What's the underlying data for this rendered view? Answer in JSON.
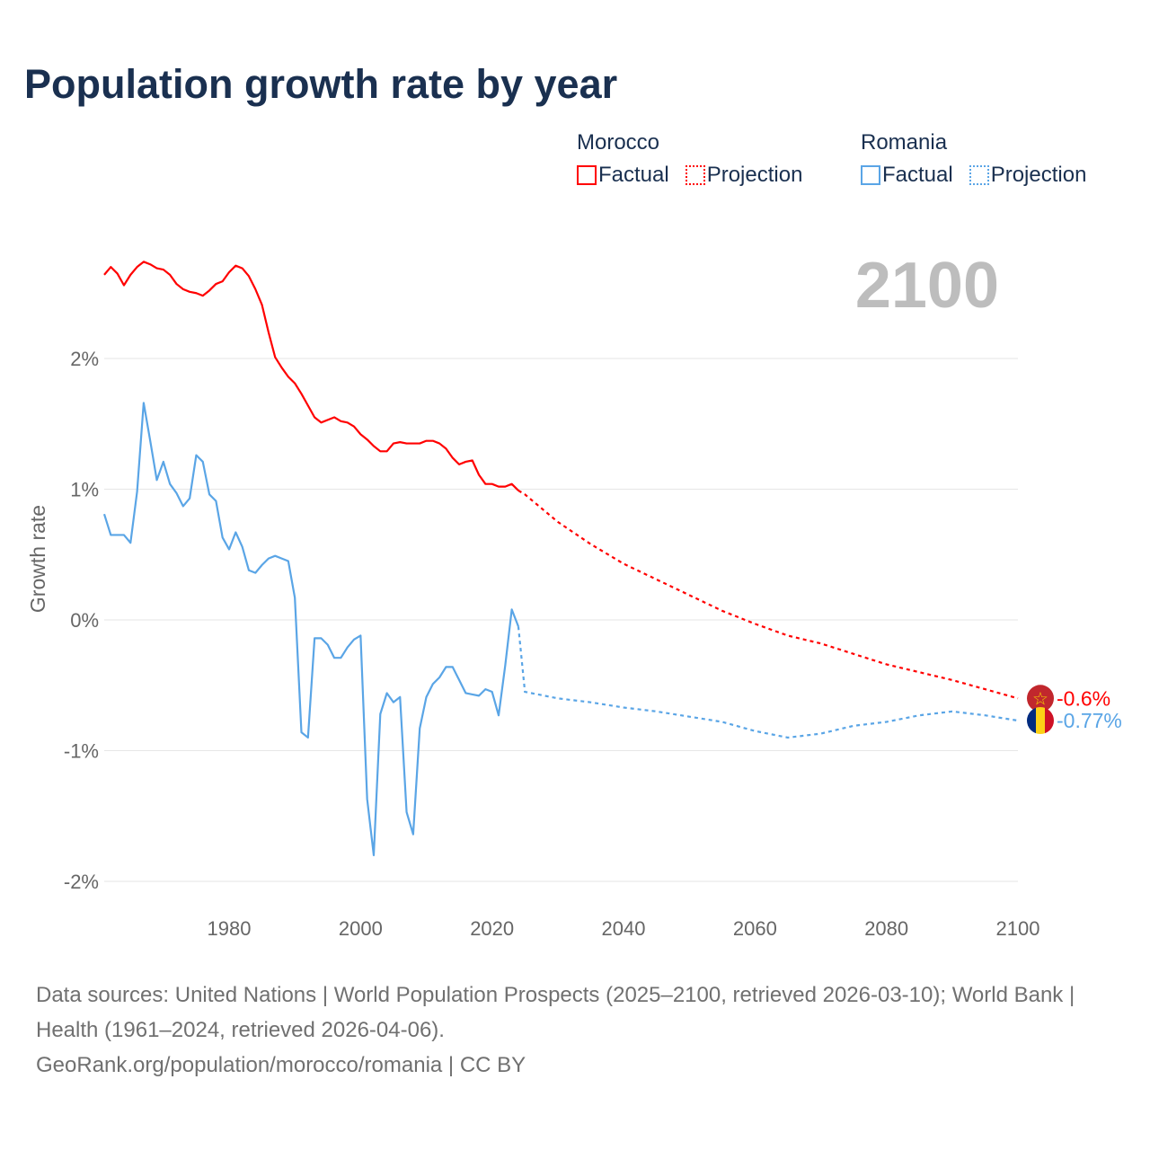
{
  "title": "Population growth rate by year",
  "legend": {
    "groups": [
      {
        "name": "Morocco",
        "factual": "Factual",
        "projection": "Projection",
        "color": "#ff0000"
      },
      {
        "name": "Romania",
        "factual": "Factual",
        "projection": "Projection",
        "color": "#5aa5e6"
      }
    ]
  },
  "year_label": "2100",
  "footer": {
    "sources": "Data sources: United Nations | World Population Prospects (2025–2100, retrieved 2026-03-10); World Bank | Health (1961–2024, retrieved 2026-04-06).",
    "credit": "GeoRank.org/population/morocco/romania | CC BY"
  },
  "chart_data": {
    "type": "line",
    "title": "Population growth rate by year",
    "ylabel": "Growth rate",
    "xlabel": "",
    "xlim": [
      1961,
      2100
    ],
    "ylim": [
      -2.2,
      2.9
    ],
    "x_ticks": [
      1980,
      2000,
      2020,
      2040,
      2060,
      2080,
      2100
    ],
    "y_ticks": [
      {
        "v": 2,
        "label": "2%"
      },
      {
        "v": 1,
        "label": "1%"
      },
      {
        "v": 0,
        "label": "0%"
      },
      {
        "v": -1,
        "label": "-1%"
      },
      {
        "v": -2,
        "label": "-2%"
      }
    ],
    "grid": true,
    "series": [
      {
        "name": "Morocco",
        "color": "#ff0000",
        "end_label": "-0.6%",
        "flag": "morocco",
        "factual": {
          "start": 1961,
          "values": [
            2.64,
            2.7,
            2.65,
            2.56,
            2.64,
            2.7,
            2.74,
            2.72,
            2.69,
            2.68,
            2.64,
            2.57,
            2.53,
            2.51,
            2.5,
            2.48,
            2.52,
            2.57,
            2.59,
            2.66,
            2.71,
            2.69,
            2.63,
            2.53,
            2.41,
            2.2,
            2.01,
            1.93,
            1.86,
            1.81,
            1.73,
            1.64,
            1.55,
            1.51,
            1.53,
            1.55,
            1.52,
            1.51,
            1.48,
            1.42,
            1.38,
            1.33,
            1.29,
            1.29,
            1.35,
            1.36,
            1.35,
            1.35,
            1.35,
            1.37,
            1.37,
            1.35,
            1.31,
            1.24,
            1.19,
            1.21,
            1.22,
            1.11,
            1.04,
            1.04,
            1.02,
            1.02,
            1.04,
            0.99
          ]
        },
        "projection": {
          "x": [
            2024,
            2025,
            2030,
            2035,
            2040,
            2045,
            2050,
            2055,
            2060,
            2065,
            2070,
            2075,
            2080,
            2085,
            2090,
            2095,
            2100
          ],
          "values": [
            0.99,
            0.96,
            0.75,
            0.58,
            0.43,
            0.31,
            0.19,
            0.07,
            -0.03,
            -0.12,
            -0.18,
            -0.26,
            -0.34,
            -0.4,
            -0.46,
            -0.53,
            -0.6
          ]
        }
      },
      {
        "name": "Romania",
        "color": "#5aa5e6",
        "end_label": "-0.77%",
        "flag": "romania",
        "factual": {
          "start": 1961,
          "values": [
            0.81,
            0.65,
            0.65,
            0.65,
            0.59,
            0.98,
            1.66,
            1.37,
            1.07,
            1.21,
            1.04,
            0.97,
            0.87,
            0.93,
            1.26,
            1.21,
            0.96,
            0.91,
            0.63,
            0.54,
            0.67,
            0.56,
            0.38,
            0.36,
            0.42,
            0.47,
            0.49,
            0.47,
            0.45,
            0.17,
            -0.86,
            -0.9,
            -0.14,
            -0.14,
            -0.19,
            -0.29,
            -0.29,
            -0.21,
            -0.15,
            -0.12,
            -1.37,
            -1.8,
            -0.72,
            -0.56,
            -0.63,
            -0.59,
            -1.47,
            -1.64,
            -0.83,
            -0.59,
            -0.49,
            -0.44,
            -0.36,
            -0.36,
            -0.46,
            -0.56,
            -0.57,
            -0.58,
            -0.53,
            -0.55,
            -0.73,
            -0.35,
            0.08,
            -0.05
          ]
        },
        "projection": {
          "x": [
            2024,
            2025,
            2030,
            2035,
            2040,
            2045,
            2050,
            2055,
            2060,
            2065,
            2070,
            2075,
            2080,
            2085,
            2090,
            2095,
            2100
          ],
          "values": [
            -0.05,
            -0.55,
            -0.6,
            -0.63,
            -0.67,
            -0.7,
            -0.74,
            -0.78,
            -0.85,
            -0.9,
            -0.87,
            -0.81,
            -0.78,
            -0.73,
            -0.7,
            -0.73,
            -0.77
          ]
        }
      }
    ]
  }
}
